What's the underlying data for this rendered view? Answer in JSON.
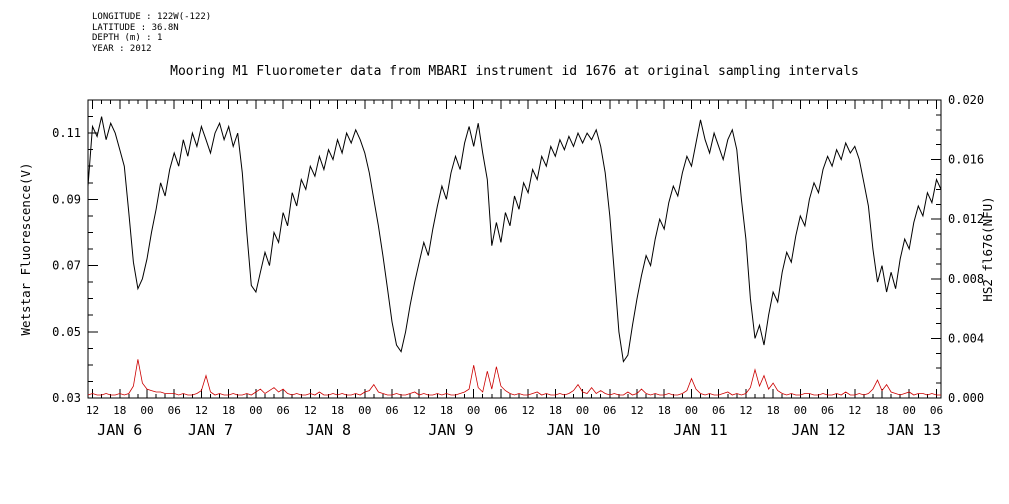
{
  "metadata": {
    "longitude": "LONGITUDE : 122W(-122)",
    "latitude": "LATITUDE : 36.8N",
    "depth": "DEPTH (m) : 1",
    "year": "YEAR : 2012"
  },
  "chart_data": {
    "type": "line",
    "title": "Mooring M1 Fluorometer data from MBARI instrument id 1676 at original sampling intervals",
    "x": {
      "min": 11,
      "max": 199,
      "start_hour": 11,
      "step_hours": 1,
      "tick_start": 12,
      "tick_step": 6,
      "tick_end": 198,
      "minor_step": 2,
      "tick_labels": [
        "12",
        "18",
        "00",
        "06",
        "12",
        "18",
        "00",
        "06",
        "12",
        "18",
        "00",
        "06",
        "12",
        "18",
        "00",
        "06",
        "12",
        "18",
        "00",
        "06",
        "12",
        "18",
        "00",
        "06",
        "12",
        "18",
        "00",
        "06",
        "12",
        "18",
        "00",
        "06"
      ],
      "day_labels": [
        {
          "label": "JAN 6",
          "hour": 18
        },
        {
          "label": "JAN 7",
          "hour": 38
        },
        {
          "label": "JAN 8",
          "hour": 64
        },
        {
          "label": "JAN 9",
          "hour": 91
        },
        {
          "label": "JAN 10",
          "hour": 118
        },
        {
          "label": "JAN 11",
          "hour": 146
        },
        {
          "label": "JAN 12",
          "hour": 172
        },
        {
          "label": "JAN 13",
          "hour": 193
        }
      ]
    },
    "y_left": {
      "label": "Wetstar Fluorescence(V)",
      "min": 0.03,
      "max": 0.12,
      "minor_step": 0.005,
      "ticks": [
        0.03,
        0.05,
        0.07,
        0.09,
        0.11
      ],
      "tick_labels": [
        "0.03",
        "0.05",
        "0.07",
        "0.09",
        "0.11"
      ],
      "color": "#000000"
    },
    "y_right": {
      "label": "HS2 fl676(NFU)",
      "min": 0.0,
      "max": 0.02,
      "minor_step": 0.001,
      "ticks": [
        0.0,
        0.004,
        0.008,
        0.012,
        0.016,
        0.02
      ],
      "tick_labels": [
        "0.000",
        "0.004",
        "0.008",
        "0.012",
        "0.016",
        "0.020"
      ],
      "color": "#cc0000"
    },
    "series": [
      {
        "name": "Wetstar Fluorescence(V)",
        "axis": "left",
        "color": "#000000",
        "values": [
          0.094,
          0.112,
          0.109,
          0.115,
          0.108,
          0.113,
          0.11,
          0.105,
          0.1,
          0.086,
          0.071,
          0.063,
          0.066,
          0.072,
          0.08,
          0.087,
          0.095,
          0.091,
          0.099,
          0.104,
          0.1,
          0.108,
          0.103,
          0.11,
          0.106,
          0.112,
          0.108,
          0.104,
          0.11,
          0.113,
          0.108,
          0.112,
          0.106,
          0.11,
          0.098,
          0.08,
          0.064,
          0.062,
          0.068,
          0.074,
          0.07,
          0.08,
          0.077,
          0.086,
          0.082,
          0.092,
          0.088,
          0.096,
          0.093,
          0.1,
          0.097,
          0.103,
          0.099,
          0.105,
          0.102,
          0.108,
          0.104,
          0.11,
          0.107,
          0.111,
          0.108,
          0.104,
          0.098,
          0.09,
          0.082,
          0.073,
          0.063,
          0.053,
          0.046,
          0.044,
          0.05,
          0.058,
          0.065,
          0.071,
          0.077,
          0.073,
          0.081,
          0.088,
          0.094,
          0.09,
          0.098,
          0.103,
          0.099,
          0.107,
          0.112,
          0.106,
          0.113,
          0.104,
          0.096,
          0.076,
          0.083,
          0.077,
          0.086,
          0.082,
          0.091,
          0.087,
          0.095,
          0.092,
          0.099,
          0.096,
          0.103,
          0.1,
          0.106,
          0.103,
          0.108,
          0.105,
          0.109,
          0.106,
          0.11,
          0.107,
          0.11,
          0.108,
          0.111,
          0.106,
          0.098,
          0.085,
          0.068,
          0.05,
          0.041,
          0.043,
          0.052,
          0.06,
          0.067,
          0.073,
          0.07,
          0.078,
          0.084,
          0.081,
          0.089,
          0.094,
          0.091,
          0.098,
          0.103,
          0.1,
          0.107,
          0.114,
          0.108,
          0.104,
          0.11,
          0.106,
          0.102,
          0.108,
          0.111,
          0.105,
          0.09,
          0.078,
          0.06,
          0.048,
          0.052,
          0.046,
          0.055,
          0.062,
          0.059,
          0.068,
          0.074,
          0.071,
          0.079,
          0.085,
          0.082,
          0.09,
          0.095,
          0.092,
          0.099,
          0.103,
          0.1,
          0.105,
          0.102,
          0.107,
          0.104,
          0.106,
          0.102,
          0.095,
          0.088,
          0.075,
          0.065,
          0.07,
          0.062,
          0.068,
          0.063,
          0.072,
          0.078,
          0.075,
          0.083,
          0.088,
          0.085,
          0.092,
          0.089,
          0.096,
          0.093
        ]
      },
      {
        "name": "HS2 fl676(NFU)",
        "axis": "right",
        "color": "#cc0000",
        "values": [
          0.0002,
          0.0003,
          0.0002,
          0.0002,
          0.0003,
          0.0002,
          0.0002,
          0.0003,
          0.0002,
          0.0003,
          0.0008,
          0.0026,
          0.001,
          0.0006,
          0.0005,
          0.0004,
          0.0004,
          0.0003,
          0.0003,
          0.0003,
          0.0002,
          0.0003,
          0.0002,
          0.0002,
          0.0003,
          0.0005,
          0.0015,
          0.0004,
          0.0002,
          0.0003,
          0.0002,
          0.0002,
          0.0003,
          0.0002,
          0.0002,
          0.0003,
          0.0002,
          0.0004,
          0.0006,
          0.0003,
          0.0005,
          0.0007,
          0.0004,
          0.0006,
          0.0003,
          0.0002,
          0.0003,
          0.0002,
          0.0002,
          0.0003,
          0.0002,
          0.0004,
          0.0002,
          0.0002,
          0.0003,
          0.0002,
          0.0003,
          0.0002,
          0.0002,
          0.0003,
          0.0002,
          0.0004,
          0.0005,
          0.0009,
          0.0004,
          0.0003,
          0.0002,
          0.0002,
          0.0003,
          0.0002,
          0.0002,
          0.0003,
          0.0004,
          0.0002,
          0.0003,
          0.0002,
          0.0002,
          0.0003,
          0.0002,
          0.0003,
          0.0002,
          0.0002,
          0.0003,
          0.0004,
          0.0006,
          0.0022,
          0.0007,
          0.0004,
          0.0018,
          0.0006,
          0.0021,
          0.0008,
          0.0005,
          0.0003,
          0.0002,
          0.0003,
          0.0002,
          0.0002,
          0.0003,
          0.0004,
          0.0002,
          0.0003,
          0.0002,
          0.0002,
          0.0003,
          0.0002,
          0.0003,
          0.0005,
          0.0009,
          0.0004,
          0.0003,
          0.0007,
          0.0003,
          0.0005,
          0.0003,
          0.0002,
          0.0003,
          0.0002,
          0.0002,
          0.0004,
          0.0002,
          0.0003,
          0.0006,
          0.0003,
          0.0002,
          0.0003,
          0.0002,
          0.0002,
          0.0003,
          0.0002,
          0.0002,
          0.0003,
          0.0005,
          0.0013,
          0.0006,
          0.0003,
          0.0002,
          0.0003,
          0.0002,
          0.0002,
          0.0003,
          0.0004,
          0.0002,
          0.0003,
          0.0002,
          0.0003,
          0.0007,
          0.0019,
          0.0008,
          0.0015,
          0.0006,
          0.001,
          0.0005,
          0.0003,
          0.0002,
          0.0003,
          0.0002,
          0.0002,
          0.0003,
          0.0003,
          0.0002,
          0.0002,
          0.0003,
          0.0002,
          0.0002,
          0.0003,
          0.0002,
          0.0004,
          0.0002,
          0.0002,
          0.0003,
          0.0002,
          0.0003,
          0.0006,
          0.0012,
          0.0005,
          0.0009,
          0.0004,
          0.0003,
          0.0002,
          0.0003,
          0.0004,
          0.0002,
          0.0003,
          0.0003,
          0.0002,
          0.0003,
          0.0002,
          0.0002
        ]
      }
    ]
  }
}
